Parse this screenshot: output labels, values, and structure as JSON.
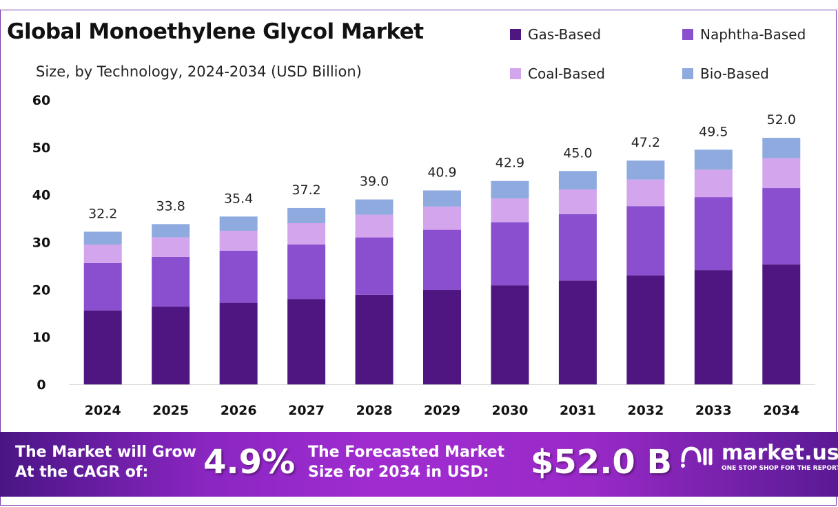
{
  "chart_data": {
    "type": "bar",
    "stacked": true,
    "title": "Global Monoethylene Glycol Market",
    "subtitle": "Size, by Technology, 2024-2034 (USD Billion)",
    "xlabel": "",
    "ylabel": "",
    "ylim": [
      0,
      60
    ],
    "yticks": [
      0,
      10,
      20,
      30,
      40,
      50,
      60
    ],
    "categories": [
      "2024",
      "2025",
      "2026",
      "2027",
      "2028",
      "2029",
      "2030",
      "2031",
      "2032",
      "2033",
      "2034"
    ],
    "series": [
      {
        "name": "Gas-Based",
        "color": "#4f1682",
        "values": [
          15.6,
          16.4,
          17.2,
          18.0,
          18.9,
          19.9,
          20.9,
          21.9,
          23.0,
          24.1,
          25.3
        ]
      },
      {
        "name": "Naphtha-Based",
        "color": "#8a4fcf",
        "values": [
          10.0,
          10.5,
          11.0,
          11.5,
          12.1,
          12.7,
          13.3,
          14.0,
          14.6,
          15.4,
          16.1
        ]
      },
      {
        "name": "Coal-Based",
        "color": "#d3a5ec",
        "values": [
          3.9,
          4.1,
          4.2,
          4.5,
          4.8,
          4.9,
          5.0,
          5.2,
          5.6,
          5.8,
          6.3
        ]
      },
      {
        "name": "Bio-Based",
        "color": "#8eaadf",
        "values": [
          2.7,
          2.8,
          3.0,
          3.2,
          3.2,
          3.4,
          3.7,
          3.9,
          4.0,
          4.2,
          4.3
        ]
      }
    ],
    "totals": [
      "32.2",
      "33.8",
      "35.4",
      "37.2",
      "39.0",
      "40.9",
      "42.9",
      "45.0",
      "47.2",
      "49.5",
      "52.0"
    ],
    "legend_position": "top-right",
    "grid": false
  },
  "banner": {
    "cagr_label_1": "The Market will Grow",
    "cagr_label_2": "At the CAGR of:",
    "cagr_value": "4.9%",
    "forecast_label_1": "The Forecasted Market",
    "forecast_label_2": "Size for 2034 in USD:",
    "forecast_value": "$52.0 B",
    "logo_name": "market.us",
    "logo_tagline": "ONE STOP SHOP FOR THE REPORTS"
  }
}
